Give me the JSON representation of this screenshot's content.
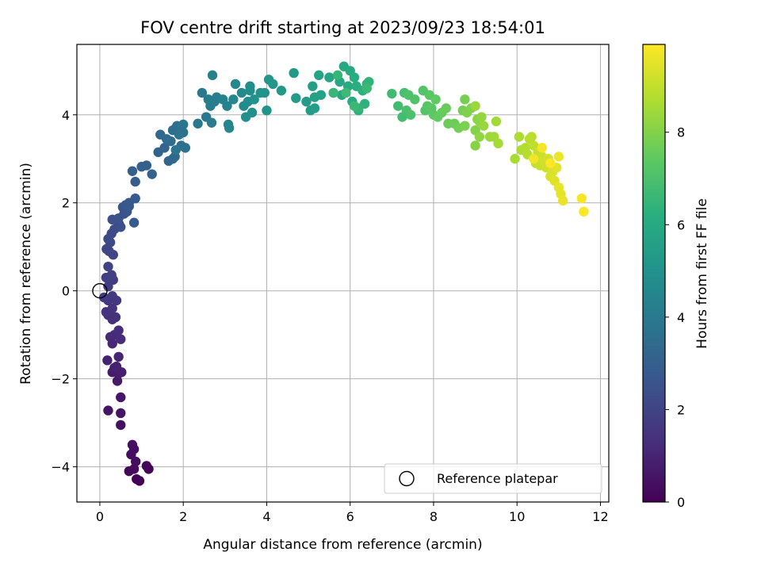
{
  "chart_data": {
    "type": "scatter",
    "title": "FOV centre drift starting at 2023/09/23 18:54:01",
    "xlabel": "Angular distance from reference (arcmin)",
    "ylabel": "Rotation from reference (arcmin)",
    "xlim": [
      -0.55,
      12.2
    ],
    "ylim": [
      -4.8,
      5.6
    ],
    "xticks": [
      "0",
      "2",
      "4",
      "6",
      "8",
      "10",
      "12"
    ],
    "yticks": [
      "−4",
      "−2",
      "0",
      "2",
      "4"
    ],
    "grid": true,
    "legend": {
      "position": "bottom-right",
      "label": "Reference platepar"
    },
    "reference_point": {
      "x": 0,
      "y": 0
    },
    "colorbar": {
      "label": "Hours from first FF file",
      "colormap": "viridis",
      "range": [
        0,
        9.9
      ],
      "ticks": [
        "0",
        "2",
        "4",
        "6",
        "8"
      ]
    },
    "series": [
      {
        "points": [
          [
            0.95,
            -4.32
          ],
          [
            0.88,
            -4.28
          ],
          [
            1.17,
            -4.05
          ],
          [
            1.12,
            -3.98
          ],
          [
            0.7,
            -4.1
          ],
          [
            0.82,
            -4.05
          ],
          [
            0.86,
            -3.88
          ],
          [
            0.75,
            -3.72
          ],
          [
            0.82,
            -3.6
          ],
          [
            0.78,
            -3.5
          ],
          [
            0.5,
            -3.05
          ],
          [
            0.2,
            -2.72
          ],
          [
            0.5,
            -2.78
          ],
          [
            0.5,
            -2.42
          ],
          [
            0.42,
            -2.05
          ],
          [
            0.3,
            -1.85
          ],
          [
            0.45,
            -1.88
          ],
          [
            0.35,
            -1.75
          ],
          [
            0.52,
            -1.85
          ],
          [
            0.4,
            -1.72
          ],
          [
            0.18,
            -1.58
          ],
          [
            0.45,
            -1.5
          ],
          [
            0.3,
            -1.2
          ],
          [
            0.25,
            -1.05
          ],
          [
            0.35,
            -1.0
          ],
          [
            0.5,
            -1.1
          ],
          [
            0.45,
            -0.9
          ],
          [
            0.3,
            -0.65
          ],
          [
            0.2,
            -0.55
          ],
          [
            0.38,
            -0.6
          ],
          [
            0.15,
            -0.48
          ],
          [
            0.3,
            -0.4
          ],
          [
            0.2,
            -0.22
          ],
          [
            0.4,
            -0.22
          ],
          [
            0.3,
            -0.12
          ],
          [
            0.1,
            -0.15
          ],
          [
            0.2,
            0.1
          ],
          [
            0.32,
            0.25
          ],
          [
            0.15,
            0.3
          ],
          [
            0.28,
            0.36
          ],
          [
            0.2,
            0.55
          ],
          [
            0.32,
            0.82
          ],
          [
            0.22,
            0.9
          ],
          [
            0.16,
            0.95
          ],
          [
            0.25,
            1.1
          ],
          [
            0.2,
            1.18
          ],
          [
            0.28,
            1.3
          ],
          [
            0.35,
            1.4
          ],
          [
            0.46,
            1.52
          ],
          [
            0.5,
            1.45
          ],
          [
            0.3,
            1.62
          ],
          [
            0.45,
            1.65
          ],
          [
            0.58,
            1.75
          ],
          [
            0.55,
            1.9
          ],
          [
            0.65,
            1.8
          ],
          [
            0.7,
            2.0
          ],
          [
            0.62,
            1.95
          ],
          [
            0.7,
            1.92
          ],
          [
            0.82,
            1.55
          ],
          [
            0.85,
            2.1
          ],
          [
            0.85,
            2.48
          ],
          [
            0.78,
            2.72
          ],
          [
            1.0,
            2.82
          ],
          [
            1.12,
            2.85
          ],
          [
            1.25,
            2.65
          ],
          [
            1.4,
            3.15
          ],
          [
            1.55,
            3.25
          ],
          [
            1.65,
            2.95
          ],
          [
            1.75,
            3.0
          ],
          [
            1.8,
            3.05
          ],
          [
            1.45,
            3.55
          ],
          [
            1.6,
            3.45
          ],
          [
            1.7,
            3.4
          ],
          [
            1.75,
            3.65
          ],
          [
            1.85,
            3.75
          ],
          [
            2.0,
            3.6
          ],
          [
            1.95,
            3.3
          ],
          [
            2.05,
            3.25
          ],
          [
            1.9,
            3.55
          ],
          [
            1.82,
            3.2
          ],
          [
            2.0,
            3.78
          ],
          [
            2.35,
            3.8
          ],
          [
            2.45,
            4.5
          ],
          [
            2.55,
            3.95
          ],
          [
            2.68,
            3.82
          ],
          [
            2.65,
            4.2
          ],
          [
            2.6,
            4.35
          ],
          [
            2.8,
            4.4
          ],
          [
            2.75,
            4.3
          ],
          [
            2.7,
            4.9
          ],
          [
            2.95,
            4.35
          ],
          [
            3.05,
            4.2
          ],
          [
            3.08,
            3.78
          ],
          [
            3.1,
            3.7
          ],
          [
            3.2,
            4.35
          ],
          [
            3.25,
            4.7
          ],
          [
            3.4,
            4.5
          ],
          [
            3.45,
            4.2
          ],
          [
            3.55,
            4.3
          ],
          [
            3.6,
            4.55
          ],
          [
            3.6,
            4.65
          ],
          [
            3.5,
            3.95
          ],
          [
            3.65,
            4.05
          ],
          [
            3.7,
            4.35
          ],
          [
            3.85,
            4.5
          ],
          [
            3.95,
            4.5
          ],
          [
            4.0,
            4.1
          ],
          [
            4.05,
            4.8
          ],
          [
            4.15,
            4.7
          ],
          [
            4.35,
            4.55
          ],
          [
            4.65,
            4.95
          ],
          [
            4.7,
            4.38
          ],
          [
            4.95,
            4.3
          ],
          [
            5.05,
            4.1
          ],
          [
            5.15,
            4.15
          ],
          [
            5.1,
            4.65
          ],
          [
            5.15,
            4.4
          ],
          [
            5.3,
            4.45
          ],
          [
            5.25,
            4.9
          ],
          [
            5.5,
            4.85
          ],
          [
            5.6,
            4.5
          ],
          [
            5.75,
            4.75
          ],
          [
            5.8,
            4.45
          ],
          [
            5.85,
            5.1
          ],
          [
            5.95,
            4.65
          ],
          [
            6.0,
            5.0
          ],
          [
            6.05,
            4.3
          ],
          [
            6.1,
            4.85
          ],
          [
            6.15,
            4.65
          ],
          [
            6.2,
            4.1
          ],
          [
            6.3,
            4.55
          ],
          [
            6.35,
            4.25
          ],
          [
            6.4,
            4.7
          ],
          [
            6.45,
            4.75
          ],
          [
            6.2,
            4.15
          ],
          [
            5.7,
            4.9
          ],
          [
            5.6,
            4.5
          ],
          [
            6.4,
            4.6
          ],
          [
            6.1,
            4.2
          ],
          [
            5.9,
            4.5
          ],
          [
            7.0,
            4.48
          ],
          [
            7.15,
            4.2
          ],
          [
            7.25,
            3.95
          ],
          [
            7.3,
            4.5
          ],
          [
            7.35,
            4.1
          ],
          [
            7.45,
            4.0
          ],
          [
            7.4,
            4.45
          ],
          [
            7.55,
            4.35
          ],
          [
            7.75,
            4.55
          ],
          [
            7.8,
            4.1
          ],
          [
            7.85,
            4.2
          ],
          [
            7.9,
            4.45
          ],
          [
            7.95,
            4.15
          ],
          [
            8.0,
            4.0
          ],
          [
            8.05,
            4.35
          ],
          [
            8.1,
            3.95
          ],
          [
            8.2,
            4.05
          ],
          [
            8.3,
            4.15
          ],
          [
            8.35,
            3.8
          ],
          [
            8.5,
            3.8
          ],
          [
            8.6,
            3.7
          ],
          [
            8.7,
            4.1
          ],
          [
            8.75,
            4.35
          ],
          [
            8.75,
            3.75
          ],
          [
            8.8,
            4.05
          ],
          [
            8.9,
            4.15
          ],
          [
            9.0,
            3.65
          ],
          [
            9.0,
            3.3
          ],
          [
            9.05,
            3.9
          ],
          [
            9.1,
            3.85
          ],
          [
            9.1,
            3.5
          ],
          [
            9.15,
            3.95
          ],
          [
            9.2,
            3.75
          ],
          [
            9.0,
            4.2
          ],
          [
            9.35,
            3.5
          ],
          [
            9.45,
            3.5
          ],
          [
            9.5,
            3.85
          ],
          [
            9.55,
            3.35
          ],
          [
            9.95,
            3.0
          ],
          [
            10.05,
            3.5
          ],
          [
            10.1,
            3.2
          ],
          [
            10.2,
            3.25
          ],
          [
            10.25,
            3.1
          ],
          [
            10.3,
            3.45
          ],
          [
            10.35,
            3.5
          ],
          [
            10.4,
            3.3
          ],
          [
            10.45,
            2.9
          ],
          [
            10.5,
            3.15
          ],
          [
            10.55,
            2.85
          ],
          [
            10.6,
            3.05
          ],
          [
            10.65,
            2.95
          ],
          [
            10.7,
            2.8
          ],
          [
            10.75,
            3.0
          ],
          [
            10.8,
            2.6
          ],
          [
            10.85,
            2.7
          ],
          [
            10.9,
            2.5
          ],
          [
            10.95,
            2.8
          ],
          [
            11.0,
            2.35
          ],
          [
            11.05,
            2.2
          ],
          [
            11.1,
            2.05
          ],
          [
            11.0,
            3.05
          ],
          [
            10.4,
            3.0
          ],
          [
            10.6,
            3.25
          ],
          [
            11.55,
            2.1
          ],
          [
            11.6,
            1.8
          ],
          [
            10.8,
            2.9
          ]
        ]
      }
    ]
  }
}
